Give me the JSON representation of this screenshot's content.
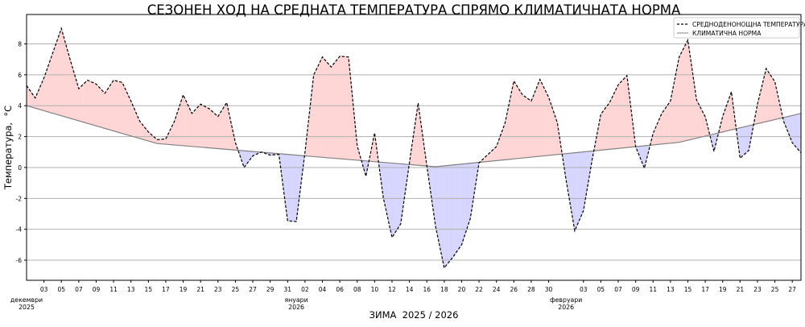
{
  "chart_data": {
    "type": "line",
    "title": "СЕЗОНЕН ХОД НА СРЕДНАТА ТЕМПЕРАТУРА СПРЯМО КЛИМАТИЧНАТА НОРМА",
    "xlabel": "ЗИМА  2025 / 2026",
    "ylabel": "Температура,  °C",
    "ylim": [
      -7.3,
      9.9
    ],
    "yticks": [
      -6,
      -4,
      -2,
      0,
      2,
      4,
      6,
      8
    ],
    "grid": "horizontal",
    "legend_position": "top-right",
    "start_date": "2025-12-01",
    "end_date": "2026-02-28",
    "series": [
      {
        "name": "СРЕДНОДЕНОНОЩНА ТЕМПЕРАТУРА",
        "style": "dashed",
        "color": "#000000",
        "values": [
          5.3,
          4.5,
          5.8,
          7.4,
          9.0,
          7.0,
          5.1,
          5.65,
          5.4,
          4.8,
          5.65,
          5.5,
          4.3,
          3.0,
          2.3,
          1.8,
          1.85,
          3.0,
          4.7,
          3.5,
          4.1,
          3.8,
          3.3,
          4.2,
          1.6,
          0.0,
          0.75,
          1.0,
          0.8,
          0.85,
          -3.45,
          -3.5,
          1.0,
          6.0,
          7.15,
          6.5,
          7.2,
          7.15,
          1.4,
          -0.57,
          2.24,
          -1.96,
          -4.53,
          -3.65,
          0.3,
          4.17,
          0.12,
          -3.8,
          -6.5,
          -5.8,
          -5.0,
          -3.3,
          0.3,
          0.83,
          1.35,
          2.9,
          5.6,
          4.7,
          4.3,
          5.7,
          4.55,
          2.9,
          -0.8,
          -4.1,
          -2.8,
          0.5,
          3.45,
          4.2,
          5.35,
          5.95,
          1.35,
          -0.05,
          2.2,
          3.5,
          4.3,
          7.15,
          8.25,
          4.37,
          3.28,
          1.04,
          3.3,
          4.9,
          0.6,
          1.1,
          4.1,
          6.4,
          5.55,
          3.0,
          1.6,
          0.95
        ]
      },
      {
        "name": "КЛИМАТИЧНА НОРМА",
        "style": "solid",
        "color": "#808080",
        "points": [
          [
            "2025-12-01",
            4.0
          ],
          [
            "2025-12-16",
            1.55
          ],
          [
            "2026-01-17",
            0.05
          ],
          [
            "2026-02-14",
            1.63
          ],
          [
            "2026-02-28",
            3.5
          ]
        ]
      }
    ],
    "fill_above_color": "#ffd6d6",
    "fill_below_color": "#d6d6ff",
    "xticks": [
      [
        "2025-12-03",
        "03"
      ],
      [
        "2025-12-05",
        "05"
      ],
      [
        "2025-12-07",
        "07"
      ],
      [
        "2025-12-09",
        "09"
      ],
      [
        "2025-12-11",
        "11"
      ],
      [
        "2025-12-13",
        "13"
      ],
      [
        "2025-12-15",
        "15"
      ],
      [
        "2025-12-17",
        "17"
      ],
      [
        "2025-12-19",
        "19"
      ],
      [
        "2025-12-21",
        "21"
      ],
      [
        "2025-12-23",
        "23"
      ],
      [
        "2025-12-25",
        "25"
      ],
      [
        "2025-12-27",
        "27"
      ],
      [
        "2025-12-29",
        "29"
      ],
      [
        "2025-12-31",
        "31"
      ],
      [
        "2026-01-02",
        "02"
      ],
      [
        "2026-01-04",
        "04"
      ],
      [
        "2026-01-06",
        "06"
      ],
      [
        "2026-01-08",
        "08"
      ],
      [
        "2026-01-10",
        "10"
      ],
      [
        "2026-01-12",
        "12"
      ],
      [
        "2026-01-14",
        "14"
      ],
      [
        "2026-01-16",
        "16"
      ],
      [
        "2026-01-18",
        "18"
      ],
      [
        "2026-01-20",
        "20"
      ],
      [
        "2026-01-22",
        "22"
      ],
      [
        "2026-01-24",
        "24"
      ],
      [
        "2026-01-26",
        "26"
      ],
      [
        "2026-01-28",
        "28"
      ],
      [
        "2026-01-30",
        "30"
      ],
      [
        "2026-02-03",
        "03"
      ],
      [
        "2026-02-05",
        "05"
      ],
      [
        "2026-02-07",
        "07"
      ],
      [
        "2026-02-09",
        "09"
      ],
      [
        "2026-02-11",
        "11"
      ],
      [
        "2026-02-13",
        "13"
      ],
      [
        "2026-02-15",
        "15"
      ],
      [
        "2026-02-17",
        "17"
      ],
      [
        "2026-02-19",
        "19"
      ],
      [
        "2026-02-21",
        "21"
      ],
      [
        "2026-02-23",
        "23"
      ],
      [
        "2026-02-25",
        "25"
      ],
      [
        "2026-02-27",
        "27"
      ]
    ],
    "month_labels": [
      {
        "date": "2025-12-01",
        "month": "декември",
        "year": "2025"
      },
      {
        "date": "2026-01-01",
        "month": "януари",
        "year": "2026"
      },
      {
        "date": "2026-02-01",
        "month": "февруари",
        "year": "2026"
      }
    ]
  }
}
